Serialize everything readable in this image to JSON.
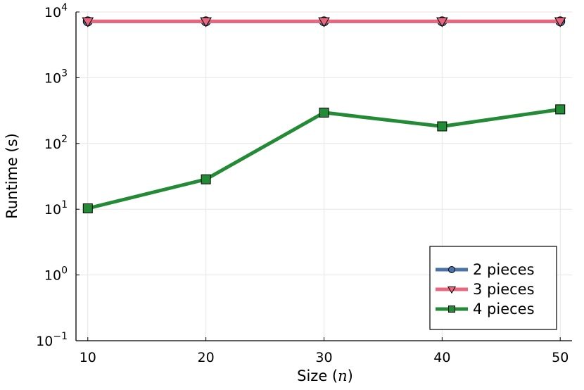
{
  "chart_data": {
    "type": "line",
    "xlabel_prefix": "Size (",
    "xlabel_var": "n",
    "xlabel_suffix": ")",
    "ylabel": "Runtime (s)",
    "yscale": "log",
    "ylim": [
      0.1,
      10000
    ],
    "xlim": [
      9,
      51
    ],
    "x": [
      10,
      20,
      30,
      40,
      50
    ],
    "xticks": [
      "10",
      "20",
      "30",
      "40",
      "50"
    ],
    "yticks": [
      {
        "value": 0.1,
        "base": "10",
        "exp": "−1"
      },
      {
        "value": 1,
        "base": "10",
        "exp": "0"
      },
      {
        "value": 10,
        "base": "10",
        "exp": "1"
      },
      {
        "value": 100,
        "base": "10",
        "exp": "2"
      },
      {
        "value": 1000,
        "base": "10",
        "exp": "3"
      },
      {
        "value": 10000,
        "base": "10",
        "exp": "4"
      }
    ],
    "grid": true,
    "legend_position": "bottom-right",
    "series": [
      {
        "name": "2 pieces",
        "values": [
          7200,
          7200,
          7200,
          7200,
          7200
        ],
        "color": "#4a74a8",
        "marker": "circle"
      },
      {
        "name": "3 pieces",
        "values": [
          7200,
          7200,
          7200,
          7200,
          7200
        ],
        "color": "#e8677e",
        "marker": "triangle-down"
      },
      {
        "name": "4 pieces",
        "values": [
          10.3,
          28.5,
          295,
          182,
          330
        ],
        "color": "#238a35",
        "marker": "square"
      }
    ]
  }
}
